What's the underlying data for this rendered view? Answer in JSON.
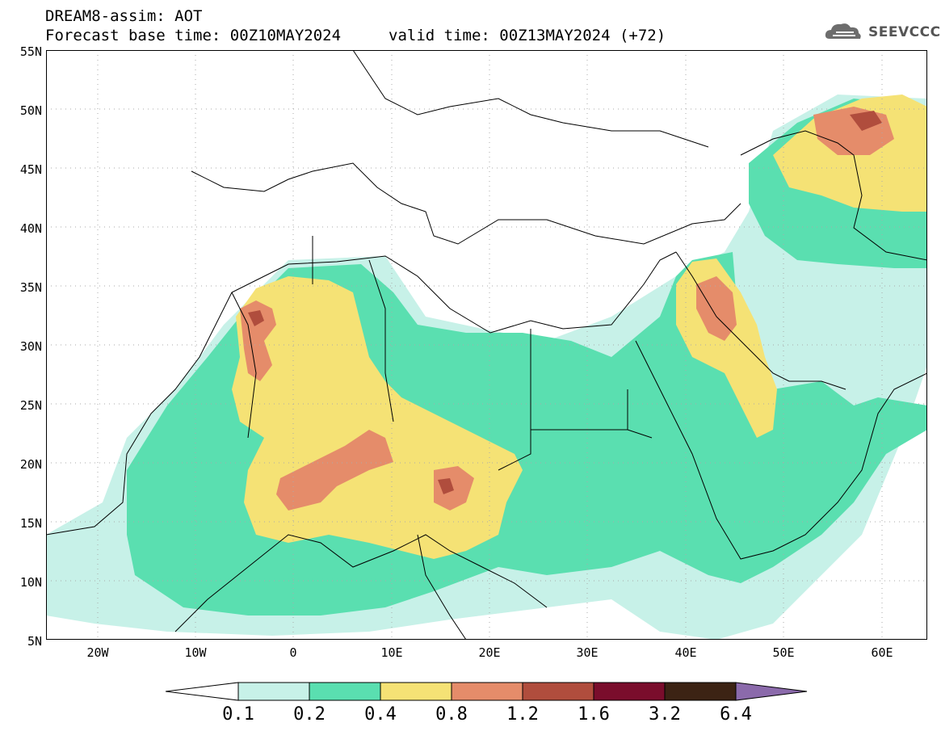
{
  "header": {
    "title": "DREAM8-assim: AOT",
    "base_time": "Forecast base time: 00Z10MAY2024",
    "valid_time": "valid time: 00Z13MAY2024 (+72)"
  },
  "logo": {
    "text": "SEEVCCC",
    "icon": "cloud-icon"
  },
  "map": {
    "lat_labels": [
      "55N",
      "50N",
      "45N",
      "40N",
      "35N",
      "30N",
      "25N",
      "20N",
      "15N",
      "10N",
      "5N"
    ],
    "lon_labels": [
      "20W",
      "10W",
      "0",
      "10E",
      "20E",
      "30E",
      "40E",
      "50E",
      "60E"
    ],
    "lat_range": [
      5,
      55
    ],
    "lon_range": [
      -25,
      65
    ],
    "grid": "dotted"
  },
  "colorbar": {
    "labels": [
      "0.1",
      "0.2",
      "0.4",
      "0.8",
      "1.2",
      "1.6",
      "3.2",
      "6.4"
    ],
    "colors": [
      "#ffffff",
      "#c7f1e8",
      "#5adfb0",
      "#f5e275",
      "#e58c6a",
      "#b04d3d",
      "#7a0d2c",
      "#3c2314",
      "#8b6aab"
    ]
  }
}
